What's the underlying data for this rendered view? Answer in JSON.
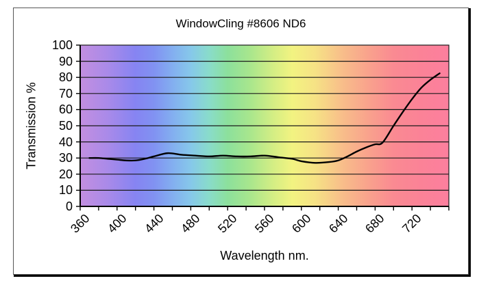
{
  "frame": {
    "background": "#ffffff",
    "border_color": "#000000"
  },
  "chart_data": {
    "type": "line",
    "title": "WindowCling #8606 ND6",
    "xlabel": "Wavelength nm.",
    "ylabel": "Transmission %",
    "xlim": [
      360,
      760
    ],
    "ylim": [
      0,
      100
    ],
    "x_tick_interval": 20,
    "x_label_interval": 40,
    "x_tick_label_values": [
      360,
      400,
      440,
      480,
      520,
      560,
      600,
      640,
      680,
      720
    ],
    "x_tick_labels": [
      "360",
      "400",
      "440",
      "480",
      "520",
      "560",
      "600",
      "640",
      "680",
      "720"
    ],
    "y_tick_values": [
      0,
      10,
      20,
      30,
      40,
      50,
      60,
      70,
      80,
      90,
      100
    ],
    "y_tick_labels": [
      "0",
      "10",
      "20",
      "30",
      "40",
      "50",
      "60",
      "70",
      "80",
      "90",
      "100"
    ],
    "grid": {
      "horizontal": true,
      "vertical": false,
      "color": "#1a1a1a"
    },
    "legend": "none",
    "series": [
      {
        "name": "Transmission %",
        "color": "#000000",
        "x": [
          370,
          380,
          390,
          400,
          410,
          420,
          430,
          440,
          455,
          470,
          485,
          500,
          515,
          530,
          545,
          560,
          575,
          590,
          600,
          615,
          630,
          640,
          650,
          660,
          670,
          680,
          688,
          700,
          710,
          720,
          730,
          740,
          750
        ],
        "y": [
          30,
          30,
          29.5,
          29,
          28.5,
          28.5,
          29.5,
          31,
          33,
          32,
          31.5,
          31,
          31.5,
          31,
          31,
          31.5,
          30.5,
          29.5,
          28,
          27,
          27.5,
          28.5,
          31,
          34,
          36.5,
          38.5,
          39.5,
          50,
          58.5,
          66.5,
          73.5,
          78.5,
          82.5
        ]
      }
    ],
    "plot_background": {
      "type": "spectrum-gradient",
      "stops": [
        {
          "offset": 0.0,
          "color": "#c38fe0"
        },
        {
          "offset": 0.075,
          "color": "#a98ae9"
        },
        {
          "offset": 0.15,
          "color": "#8684f2"
        },
        {
          "offset": 0.2,
          "color": "#8192f2"
        },
        {
          "offset": 0.25,
          "color": "#83aef0"
        },
        {
          "offset": 0.3,
          "color": "#86c8ea"
        },
        {
          "offset": 0.35,
          "color": "#89dcca"
        },
        {
          "offset": 0.4,
          "color": "#8ce09c"
        },
        {
          "offset": 0.46,
          "color": "#a8e68d"
        },
        {
          "offset": 0.525,
          "color": "#d5ee84"
        },
        {
          "offset": 0.575,
          "color": "#f2f381"
        },
        {
          "offset": 0.6375,
          "color": "#f6e285"
        },
        {
          "offset": 0.7125,
          "color": "#f8bd8a"
        },
        {
          "offset": 0.7875,
          "color": "#f9a08d"
        },
        {
          "offset": 0.85,
          "color": "#fa8a92"
        },
        {
          "offset": 0.925,
          "color": "#fb8297"
        },
        {
          "offset": 1.0,
          "color": "#fc7f9e"
        }
      ]
    }
  }
}
